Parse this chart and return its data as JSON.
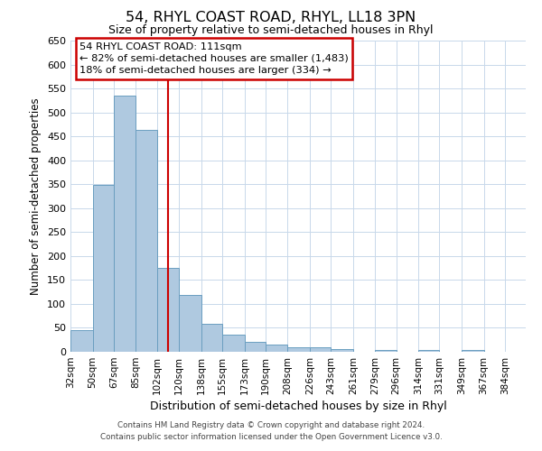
{
  "title": "54, RHYL COAST ROAD, RHYL, LL18 3PN",
  "subtitle": "Size of property relative to semi-detached houses in Rhyl",
  "xlabel": "Distribution of semi-detached houses by size in Rhyl",
  "ylabel": "Number of semi-detached properties",
  "bar_labels": [
    "32sqm",
    "50sqm",
    "67sqm",
    "85sqm",
    "102sqm",
    "120sqm",
    "138sqm",
    "155sqm",
    "173sqm",
    "190sqm",
    "208sqm",
    "226sqm",
    "243sqm",
    "261sqm",
    "279sqm",
    "296sqm",
    "314sqm",
    "331sqm",
    "349sqm",
    "367sqm",
    "384sqm"
  ],
  "bar_values": [
    46,
    348,
    535,
    464,
    176,
    118,
    58,
    35,
    20,
    15,
    10,
    10,
    5,
    0,
    4,
    0,
    4,
    0,
    4,
    0,
    0
  ],
  "bar_color": "#afc9e0",
  "bar_edge_color": "#6a9ec0",
  "ylim": [
    0,
    650
  ],
  "yticks": [
    0,
    50,
    100,
    150,
    200,
    250,
    300,
    350,
    400,
    450,
    500,
    550,
    600,
    650
  ],
  "property_line_x": 111,
  "property_line_color": "#cc0000",
  "annotation_title": "54 RHYL COAST ROAD: 111sqm",
  "annotation_line1": "← 82% of semi-detached houses are smaller (1,483)",
  "annotation_line2": "18% of semi-detached houses are larger (334) →",
  "annotation_box_color": "#cc0000",
  "footer_line1": "Contains HM Land Registry data © Crown copyright and database right 2024.",
  "footer_line2": "Contains public sector information licensed under the Open Government Licence v3.0.",
  "background_color": "#ffffff",
  "grid_color": "#c8d8ea"
}
